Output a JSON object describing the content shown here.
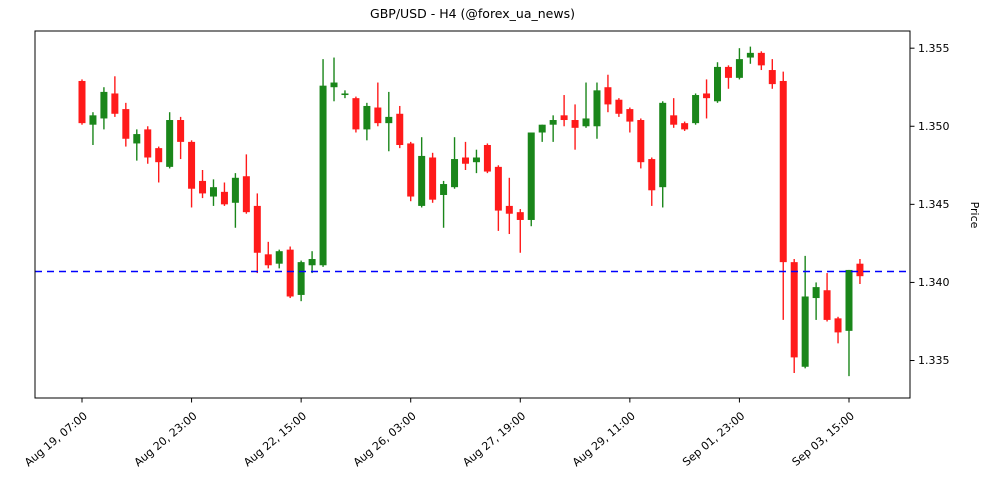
{
  "chart_data": {
    "type": "candlestick",
    "title": "GBP/USD - H4 (@forex_ua_news)",
    "xlabel": "",
    "ylabel": "Price",
    "timeframe": "H4",
    "symbol": "GBP/USD",
    "ylim": [
      1.3326,
      1.3561
    ],
    "grid": false,
    "y_axis_side": "right",
    "y_ticks": [
      1.335,
      1.34,
      1.345,
      1.35,
      1.355
    ],
    "y_tick_decimals": 3,
    "x_ticks": [
      {
        "index": 0,
        "label": "Aug 19, 07:00"
      },
      {
        "index": 10,
        "label": "Aug 20, 23:00"
      },
      {
        "index": 20,
        "label": "Aug 22, 15:00"
      },
      {
        "index": 30,
        "label": "Aug 26, 03:00"
      },
      {
        "index": 40,
        "label": "Aug 27, 19:00"
      },
      {
        "index": 50,
        "label": "Aug 29, 11:00"
      },
      {
        "index": 60,
        "label": "Sep 01, 23:00"
      },
      {
        "index": 70,
        "label": "Sep 03, 15:00"
      }
    ],
    "hline": {
      "value": 1.3407,
      "color": "#0000ff",
      "style": "dashed"
    },
    "colors": {
      "up": "#1a861a",
      "down": "#ff1a1a",
      "axis": "#000000"
    },
    "columns": [
      "open",
      "high",
      "low",
      "close"
    ],
    "candles": [
      [
        1.3529,
        1.353,
        1.3501,
        1.3502
      ],
      [
        1.3501,
        1.3509,
        1.3488,
        1.3507
      ],
      [
        1.3505,
        1.3525,
        1.3498,
        1.3522
      ],
      [
        1.3521,
        1.3532,
        1.3506,
        1.3508
      ],
      [
        1.3511,
        1.3515,
        1.3487,
        1.3492
      ],
      [
        1.3489,
        1.3498,
        1.3478,
        1.3495
      ],
      [
        1.3498,
        1.35,
        1.3476,
        1.348
      ],
      [
        1.3486,
        1.3487,
        1.3464,
        1.3477
      ],
      [
        1.3474,
        1.3509,
        1.3473,
        1.3504
      ],
      [
        1.3504,
        1.3506,
        1.3479,
        1.349
      ],
      [
        1.349,
        1.3491,
        1.3448,
        1.346
      ],
      [
        1.3465,
        1.3472,
        1.3454,
        1.3457
      ],
      [
        1.3455,
        1.3466,
        1.3449,
        1.3461
      ],
      [
        1.3458,
        1.3464,
        1.3449,
        1.345
      ],
      [
        1.3451,
        1.347,
        1.3435,
        1.3467
      ],
      [
        1.3468,
        1.3482,
        1.3444,
        1.3445
      ],
      [
        1.3449,
        1.3457,
        1.3406,
        1.3419
      ],
      [
        1.3418,
        1.3426,
        1.3409,
        1.3411
      ],
      [
        1.3412,
        1.3421,
        1.3409,
        1.342
      ],
      [
        1.3421,
        1.3423,
        1.339,
        1.3391
      ],
      [
        1.3392,
        1.3414,
        1.3388,
        1.3413
      ],
      [
        1.3411,
        1.342,
        1.3406,
        1.3415
      ],
      [
        1.3411,
        1.3543,
        1.341,
        1.3526
      ],
      [
        1.3525,
        1.3544,
        1.3516,
        1.3528
      ],
      [
        1.352,
        1.3523,
        1.3518,
        1.3521
      ],
      [
        1.3518,
        1.3519,
        1.3496,
        1.3498
      ],
      [
        1.3498,
        1.3515,
        1.3491,
        1.3513
      ],
      [
        1.3512,
        1.3528,
        1.35,
        1.3502
      ],
      [
        1.3502,
        1.3522,
        1.3484,
        1.3506
      ],
      [
        1.3508,
        1.3513,
        1.3486,
        1.3488
      ],
      [
        1.3489,
        1.349,
        1.3452,
        1.3455
      ],
      [
        1.3449,
        1.3493,
        1.3448,
        1.3481
      ],
      [
        1.348,
        1.3483,
        1.3451,
        1.3453
      ],
      [
        1.3456,
        1.3465,
        1.3435,
        1.3463
      ],
      [
        1.3461,
        1.3493,
        1.346,
        1.3479
      ],
      [
        1.348,
        1.349,
        1.3472,
        1.3476
      ],
      [
        1.3477,
        1.3485,
        1.347,
        1.348
      ],
      [
        1.3488,
        1.3489,
        1.347,
        1.3471
      ],
      [
        1.3474,
        1.3475,
        1.3433,
        1.3446
      ],
      [
        1.3449,
        1.3467,
        1.3431,
        1.3444
      ],
      [
        1.3445,
        1.3447,
        1.3419,
        1.344
      ],
      [
        1.344,
        1.3496,
        1.3436,
        1.3496
      ],
      [
        1.3496,
        1.3501,
        1.349,
        1.3501
      ],
      [
        1.3501,
        1.3507,
        1.349,
        1.3504
      ],
      [
        1.3507,
        1.352,
        1.35,
        1.3504
      ],
      [
        1.3504,
        1.3514,
        1.3485,
        1.3499
      ],
      [
        1.35,
        1.3528,
        1.3499,
        1.3505
      ],
      [
        1.35,
        1.3528,
        1.3492,
        1.3523
      ],
      [
        1.3525,
        1.3533,
        1.3509,
        1.3514
      ],
      [
        1.3517,
        1.3518,
        1.3506,
        1.3508
      ],
      [
        1.3511,
        1.3512,
        1.3496,
        1.3503
      ],
      [
        1.3504,
        1.3505,
        1.3473,
        1.3477
      ],
      [
        1.3479,
        1.348,
        1.3449,
        1.3459
      ],
      [
        1.3461,
        1.3516,
        1.3448,
        1.3515
      ],
      [
        1.3507,
        1.3518,
        1.3499,
        1.3501
      ],
      [
        1.3502,
        1.3503,
        1.3497,
        1.3498
      ],
      [
        1.3502,
        1.3521,
        1.3501,
        1.352
      ],
      [
        1.3521,
        1.353,
        1.3505,
        1.3518
      ],
      [
        1.3516,
        1.3541,
        1.3515,
        1.3538
      ],
      [
        1.3538,
        1.3539,
        1.3524,
        1.3531
      ],
      [
        1.3531,
        1.355,
        1.353,
        1.3543
      ],
      [
        1.3544,
        1.3551,
        1.354,
        1.3547
      ],
      [
        1.3547,
        1.3548,
        1.3536,
        1.3539
      ],
      [
        1.3536,
        1.3543,
        1.3524,
        1.3527
      ],
      [
        1.3529,
        1.3535,
        1.3376,
        1.3413
      ],
      [
        1.3413,
        1.3415,
        1.3342,
        1.3352
      ],
      [
        1.3346,
        1.3417,
        1.3345,
        1.3391
      ],
      [
        1.339,
        1.34,
        1.3376,
        1.3397
      ],
      [
        1.3395,
        1.3406,
        1.3375,
        1.3376
      ],
      [
        1.3377,
        1.3378,
        1.3361,
        1.3368
      ],
      [
        1.3369,
        1.3408,
        1.334,
        1.3408
      ],
      [
        1.3412,
        1.3415,
        1.3399,
        1.3404
      ]
    ]
  }
}
